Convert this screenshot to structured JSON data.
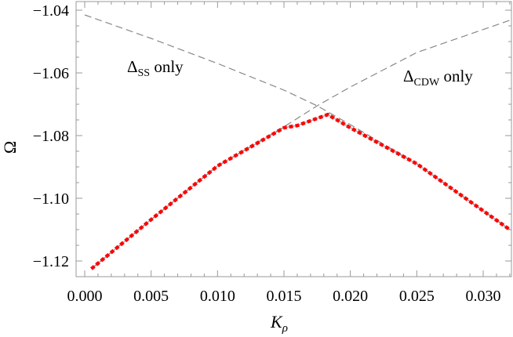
{
  "chart_data": {
    "type": "line",
    "title": "",
    "xlabel": "K",
    "xlabel_sub": "ρ",
    "ylabel": "Ω",
    "xlim": [
      -0.0006,
      0.0326
    ],
    "ylim": [
      -1.125,
      -1.0385
    ],
    "xticks": [
      "0.000",
      "0.005",
      "0.010",
      "0.015",
      "0.020",
      "0.025",
      "0.030"
    ],
    "xtick_values": [
      0,
      0.005,
      0.01,
      0.015,
      0.02,
      0.025,
      0.03
    ],
    "yticks": [
      "-1.04",
      "-1.06",
      "-1.08",
      "-1.10",
      "-1.12"
    ],
    "ytick_values": [
      -1.04,
      -1.06,
      -1.08,
      -1.1,
      -1.12
    ],
    "grid": false,
    "annotations": [
      {
        "main": "Δ",
        "sub": "SS",
        "rest": " only"
      },
      {
        "main": "Δ",
        "sub": "CDW",
        "rest": " only"
      }
    ],
    "series": [
      {
        "id": "ss-only",
        "style": "dashed",
        "color": "#888888",
        "x": [
          0,
          0.005,
          0.01,
          0.015,
          0.0175,
          0.02,
          0.025,
          0.032
        ],
        "y": [
          -1.0415,
          -1.049,
          -1.057,
          -1.0655,
          -1.0705,
          -1.0765,
          -1.089,
          -1.11
        ]
      },
      {
        "id": "cdw-only",
        "style": "dashed",
        "color": "#888888",
        "x": [
          0.0005,
          0.005,
          0.01,
          0.015,
          0.0175,
          0.02,
          0.025,
          0.0325
        ],
        "y": [
          -1.1225,
          -1.1068,
          -1.0897,
          -1.0772,
          -1.0705,
          -1.0645,
          -1.0535,
          -1.0425
        ]
      },
      {
        "id": "combined",
        "style": "dotted-thick",
        "color": "#ff0000",
        "x": [
          0.0005,
          0.005,
          0.01,
          0.015,
          0.016,
          0.0183,
          0.02,
          0.025,
          0.032
        ],
        "y": [
          -1.1225,
          -1.1068,
          -1.0897,
          -1.0775,
          -1.0768,
          -1.0733,
          -1.0775,
          -1.089,
          -1.11
        ]
      }
    ]
  }
}
